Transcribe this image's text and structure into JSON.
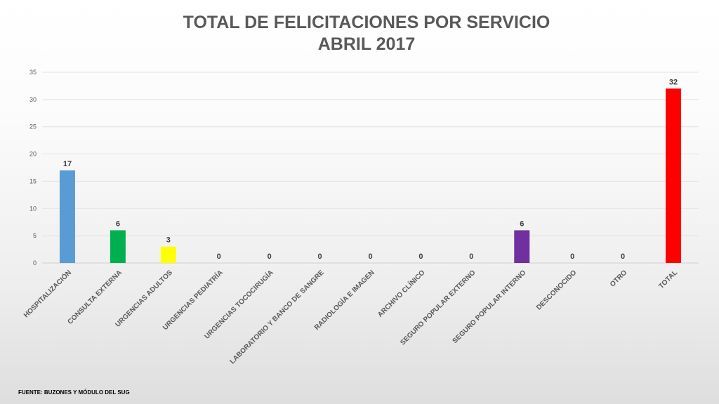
{
  "chart_data": {
    "type": "bar",
    "title": "TOTAL DE FELICITACIONES POR SERVICIO",
    "subtitle": "ABRIL 2017",
    "xlabel": "",
    "ylabel": "",
    "ylim": [
      0,
      35
    ],
    "yticks": [
      0,
      5,
      10,
      15,
      20,
      25,
      30,
      35
    ],
    "grid": true,
    "legend": "none",
    "categories": [
      "HOSPITALIZACIÓN",
      "CONSULTA EXTERNA",
      "URGENCIAS ADULTOS",
      "URGENCIAS PEDIATRÍA",
      "URGENCIAS TOCOCIRUGÍA",
      "LABORATORIO Y BANCO DE SANGRE",
      "RADIOLOGÍA E IMAGEN",
      "ARCHIVO CLÍNICO",
      "SEGURO POPULAR EXTERNO",
      "SEGURO POPULAR INTERNO",
      "DESCONOCIDO",
      "OTRO",
      "TOTAL"
    ],
    "values": [
      17,
      6,
      3,
      0,
      0,
      0,
      0,
      0,
      0,
      6,
      0,
      0,
      32
    ],
    "colors": [
      "#5b9bd5",
      "#00b050",
      "#ffff00",
      "#7f7f7f",
      "#7f7f7f",
      "#7f7f7f",
      "#7f7f7f",
      "#7f7f7f",
      "#7f7f7f",
      "#7030a0",
      "#7f7f7f",
      "#7f7f7f",
      "#ff0000"
    ]
  },
  "footer": {
    "source": "FUENTE: BUZONES Y MÓDULO DEL SUG"
  }
}
